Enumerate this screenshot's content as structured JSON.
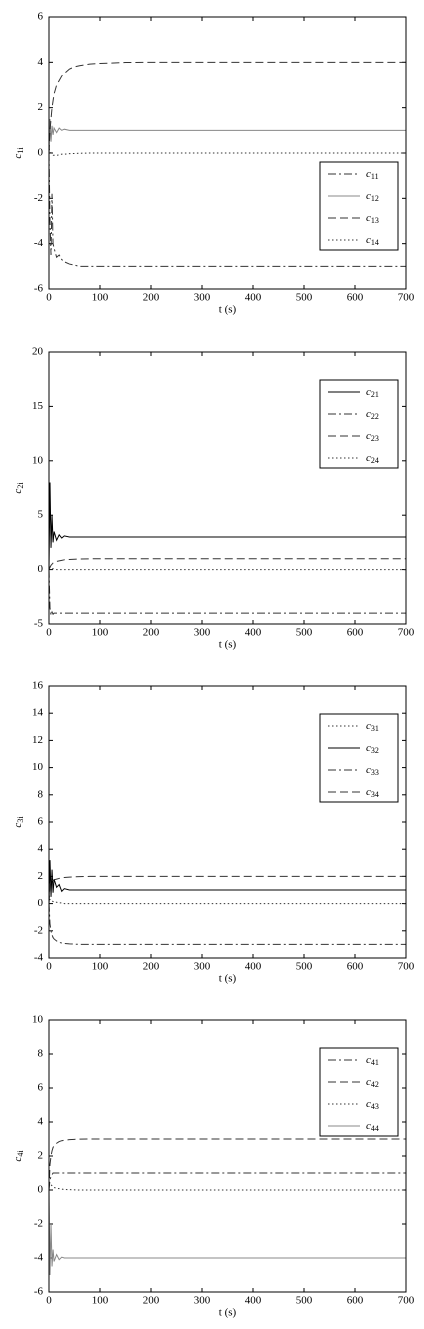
{
  "chart_data": [
    {
      "type": "line",
      "xlabel": "t (s)",
      "ylabel": "c1i",
      "xlim": [
        0,
        700
      ],
      "ylim": [
        -6,
        6
      ],
      "xticks": [
        0,
        100,
        200,
        300,
        400,
        500,
        600,
        700
      ],
      "yticks": [
        -6,
        -4,
        -2,
        0,
        2,
        4,
        6
      ],
      "legend": "lower right",
      "x": [
        0,
        2,
        4,
        6,
        8,
        10,
        15,
        20,
        25,
        30,
        40,
        50,
        60,
        80,
        100,
        150,
        200,
        300,
        400,
        500,
        600,
        700
      ],
      "series": [
        {
          "name": "c11",
          "color": "#333333",
          "dash": "dashdot",
          "values": [
            0,
            -3,
            -4.5,
            -1.8,
            -4,
            -4.2,
            -4.6,
            -4.5,
            -4.7,
            -4.8,
            -4.9,
            -4.95,
            -5,
            -5,
            -5,
            -5,
            -5,
            -5,
            -5,
            -5,
            -5,
            -5
          ]
        },
        {
          "name": "c12",
          "color": "#888888",
          "dash": "solid",
          "values": [
            0,
            1.5,
            0.5,
            1.2,
            0.8,
            1.1,
            0.9,
            1.1,
            1,
            1.05,
            1,
            1,
            1,
            1,
            1,
            1,
            1,
            1,
            1,
            1,
            1,
            1
          ]
        },
        {
          "name": "c13",
          "color": "#333333",
          "dash": "dashed",
          "values": [
            0,
            1,
            1.5,
            2,
            2.3,
            2.6,
            3,
            3.2,
            3.4,
            3.5,
            3.7,
            3.8,
            3.85,
            3.92,
            3.95,
            3.99,
            4,
            4,
            4,
            4,
            4,
            4
          ]
        },
        {
          "name": "c14",
          "color": "#333333",
          "dash": "dotted",
          "values": [
            0.2,
            0.1,
            0,
            -0.05,
            -0.1,
            -0.1,
            -0.1,
            -0.08,
            -0.05,
            -0.05,
            -0.03,
            -0.02,
            -0.01,
            0,
            0,
            0,
            0,
            0,
            0,
            0,
            0,
            0
          ]
        }
      ]
    },
    {
      "type": "line",
      "xlabel": "t (s)",
      "ylabel": "c2i",
      "xlim": [
        0,
        700
      ],
      "ylim": [
        -5,
        20
      ],
      "xticks": [
        0,
        100,
        200,
        300,
        400,
        500,
        600,
        700
      ],
      "yticks": [
        -5,
        0,
        5,
        10,
        15,
        20
      ],
      "legend": "upper right",
      "x": [
        0,
        2,
        4,
        6,
        8,
        10,
        15,
        20,
        25,
        30,
        40,
        50,
        60,
        80,
        100,
        150,
        200,
        300,
        400,
        500,
        600,
        700
      ],
      "series": [
        {
          "name": "c21",
          "color": "#000000",
          "dash": "solid",
          "values": [
            0,
            8,
            2,
            5,
            2.5,
            3.5,
            2.7,
            3.2,
            2.9,
            3.1,
            3,
            3,
            3,
            3,
            3,
            3,
            3,
            3,
            3,
            3,
            3,
            3
          ]
        },
        {
          "name": "c22",
          "color": "#333333",
          "dash": "dashdot",
          "values": [
            0,
            -3.5,
            -4.2,
            -3.9,
            -4.1,
            -4,
            -4,
            -4,
            -4,
            -4,
            -4,
            -4,
            -4,
            -4,
            -4,
            -4,
            -4,
            -4,
            -4,
            -4,
            -4,
            -4
          ]
        },
        {
          "name": "c23",
          "color": "#333333",
          "dash": "dashed",
          "values": [
            0,
            0.2,
            0.4,
            0.5,
            0.6,
            0.65,
            0.75,
            0.8,
            0.85,
            0.9,
            0.93,
            0.95,
            0.97,
            0.99,
            1,
            1,
            1,
            1,
            1,
            1,
            1,
            1
          ]
        },
        {
          "name": "c24",
          "color": "#333333",
          "dash": "dotted",
          "values": [
            0.3,
            0.2,
            0.15,
            0.1,
            0.08,
            0.05,
            0,
            0,
            0,
            0,
            0,
            0,
            0,
            0,
            0,
            0,
            0,
            0,
            0,
            0,
            0,
            0
          ]
        }
      ]
    },
    {
      "type": "line",
      "xlabel": "t (s)",
      "ylabel": "c3i",
      "xlim": [
        0,
        700
      ],
      "ylim": [
        -4,
        16
      ],
      "xticks": [
        0,
        100,
        200,
        300,
        400,
        500,
        600,
        700
      ],
      "yticks": [
        -4,
        -2,
        0,
        2,
        4,
        6,
        8,
        10,
        12,
        14,
        16
      ],
      "legend": "upper right",
      "x": [
        0,
        2,
        4,
        6,
        8,
        10,
        15,
        20,
        25,
        30,
        40,
        50,
        60,
        80,
        100,
        150,
        200,
        300,
        400,
        500,
        600,
        700
      ],
      "series": [
        {
          "name": "c31",
          "color": "#333333",
          "dash": "dotted",
          "values": [
            0.3,
            0.3,
            0.2,
            0.2,
            0.15,
            0.1,
            0.1,
            0.05,
            0.05,
            0,
            0,
            0,
            0,
            0,
            0,
            0,
            0,
            0,
            0,
            0,
            0,
            0
          ]
        },
        {
          "name": "c32",
          "color": "#000000",
          "dash": "solid",
          "values": [
            0,
            3.2,
            0.5,
            2.5,
            0.8,
            1.8,
            1.2,
            1.4,
            0.9,
            1.1,
            1,
            1,
            1,
            1,
            1,
            1,
            1,
            1,
            1,
            1,
            1,
            1
          ]
        },
        {
          "name": "c33",
          "color": "#333333",
          "dash": "dashdot",
          "values": [
            0,
            -1.5,
            -2,
            -2.3,
            -2.5,
            -2.6,
            -2.75,
            -2.85,
            -2.9,
            -2.93,
            -2.96,
            -2.98,
            -3,
            -3,
            -3,
            -3,
            -3,
            -3,
            -3,
            -3,
            -3,
            -3
          ]
        },
        {
          "name": "c34",
          "color": "#333333",
          "dash": "dashed",
          "values": [
            0,
            1.5,
            1.6,
            1.7,
            1.7,
            1.75,
            1.8,
            1.85,
            1.9,
            1.92,
            1.95,
            1.97,
            1.98,
            2,
            2,
            2,
            2,
            2,
            2,
            2,
            2,
            2
          ]
        }
      ]
    },
    {
      "type": "line",
      "xlabel": "t (s)",
      "ylabel": "c4i",
      "xlim": [
        0,
        700
      ],
      "ylim": [
        -6,
        10
      ],
      "xticks": [
        0,
        100,
        200,
        300,
        400,
        500,
        600,
        700
      ],
      "yticks": [
        -6,
        -4,
        -2,
        0,
        2,
        4,
        6,
        8,
        10
      ],
      "legend": "upper right",
      "x": [
        0,
        2,
        4,
        6,
        8,
        10,
        15,
        20,
        25,
        30,
        40,
        50,
        60,
        80,
        100,
        150,
        200,
        300,
        400,
        500,
        600,
        700
      ],
      "series": [
        {
          "name": "c41",
          "color": "#333333",
          "dash": "dashdot",
          "values": [
            0,
            0.6,
            0.8,
            0.9,
            1,
            1,
            1,
            1,
            1,
            1,
            1,
            1,
            1,
            1,
            1,
            1,
            1,
            1,
            1,
            1,
            1,
            1
          ]
        },
        {
          "name": "c42",
          "color": "#333333",
          "dash": "dashed",
          "values": [
            0,
            1.5,
            2,
            2.3,
            2.5,
            2.6,
            2.75,
            2.85,
            2.9,
            2.93,
            2.96,
            2.98,
            2.99,
            3,
            3,
            3,
            3,
            3,
            3,
            3,
            3,
            3
          ]
        },
        {
          "name": "c43",
          "color": "#333333",
          "dash": "dotted",
          "values": [
            0.5,
            0.4,
            0.3,
            0.25,
            0.2,
            0.15,
            0.1,
            0.08,
            0.05,
            0.03,
            0.02,
            0.01,
            0,
            0,
            0,
            0,
            0,
            0,
            0,
            0,
            0,
            0
          ]
        },
        {
          "name": "c44",
          "color": "#888888",
          "dash": "solid",
          "values": [
            0,
            -5,
            -2,
            -4.5,
            -3.5,
            -4.2,
            -3.8,
            -4.1,
            -3.95,
            -4,
            -4,
            -4,
            -4,
            -4,
            -4,
            -4,
            -4,
            -4,
            -4,
            -4,
            -4,
            -4
          ]
        }
      ]
    }
  ]
}
